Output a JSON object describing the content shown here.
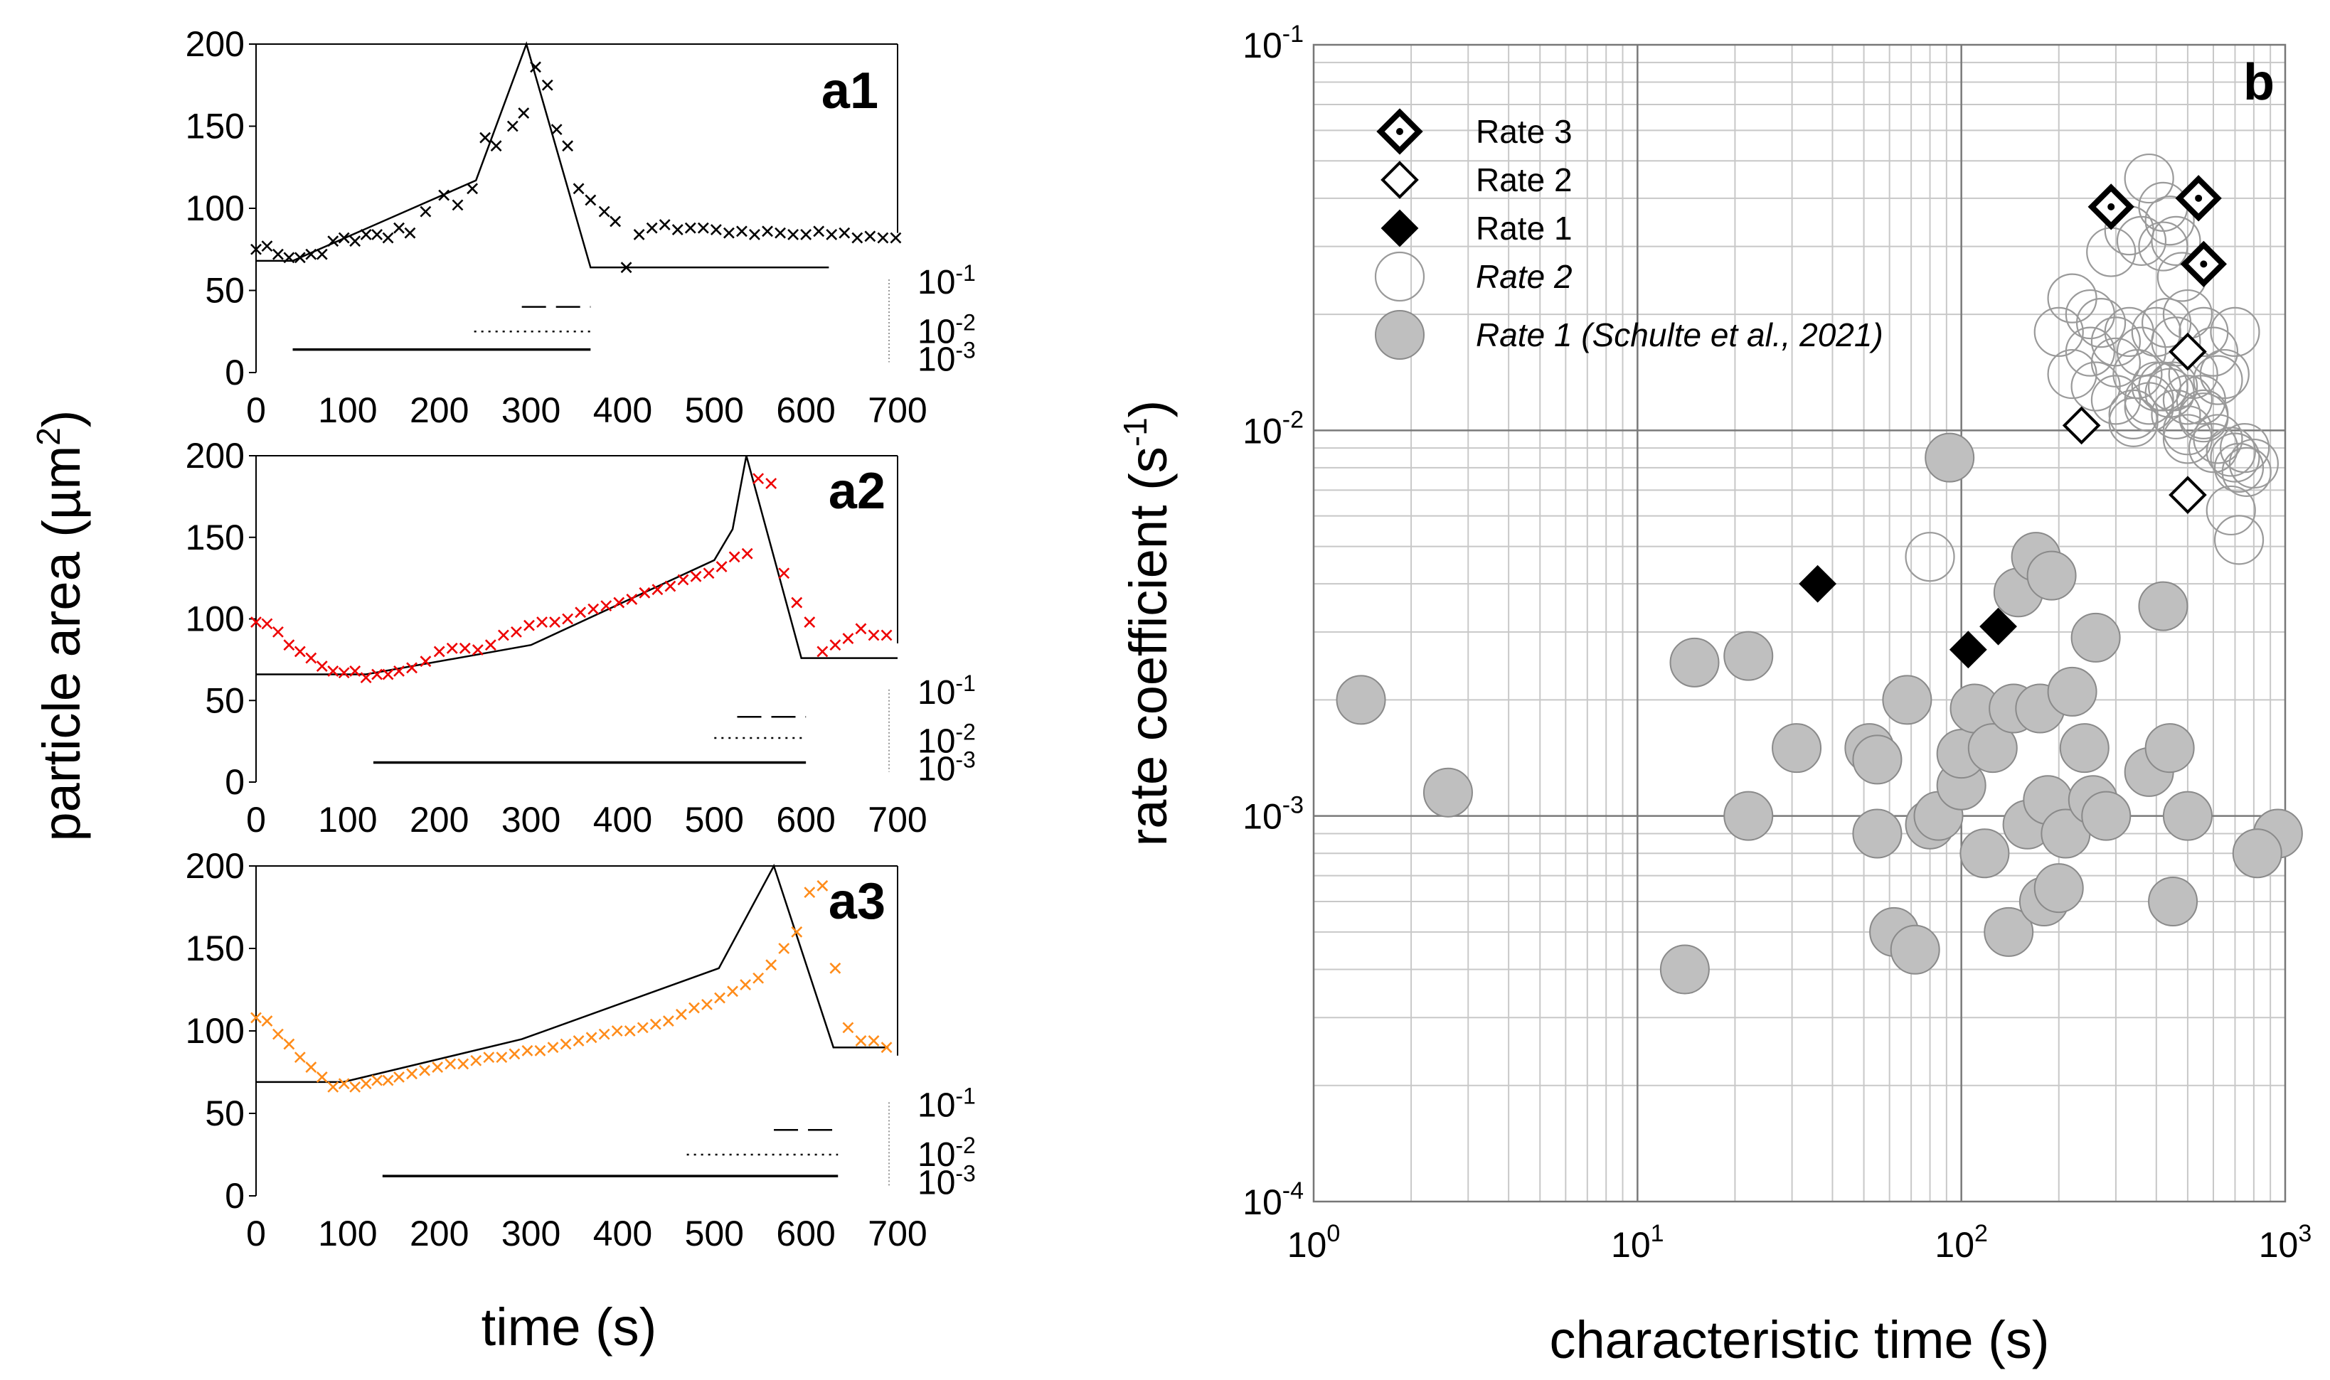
{
  "figure": {
    "shared_ylabel": "particle area (µm",
    "shared_ylabel_sup": "2",
    "shared_ylabel_close": ")",
    "shared_xlabel": "time (s)"
  },
  "chart_data": [
    {
      "id": "a1",
      "type": "line",
      "title": "a1",
      "marker_color": "#000000",
      "xlim": [
        0,
        700
      ],
      "ylim": [
        0,
        200
      ],
      "xticks": [
        "0",
        "100",
        "200",
        "300",
        "400",
        "500",
        "600",
        "700"
      ],
      "yticks": [
        "0",
        "50",
        "100",
        "150",
        "200"
      ],
      "rate_axis_ticks": [
        "10-1",
        "10-2",
        "10-3"
      ],
      "model_line": {
        "x": [
          0,
          40,
          240,
          295,
          365,
          625
        ],
        "y": [
          68,
          68,
          117,
          200,
          64,
          64
        ]
      },
      "measured": {
        "x": [
          0,
          12,
          24,
          36,
          48,
          60,
          72,
          84,
          96,
          108,
          120,
          132,
          144,
          156,
          168,
          185,
          205,
          220,
          236,
          250,
          262,
          280,
          292,
          305,
          318,
          328,
          340,
          352,
          365,
          380,
          392,
          404,
          418,
          432,
          446,
          460,
          474,
          488,
          502,
          516,
          530,
          544,
          558,
          572,
          586,
          600,
          614,
          628,
          642,
          656,
          670,
          684,
          698
        ],
        "y": [
          75,
          77,
          72,
          70,
          70,
          72,
          72,
          80,
          82,
          80,
          84,
          84,
          82,
          88,
          85,
          98,
          108,
          102,
          112,
          143,
          138,
          150,
          158,
          186,
          175,
          148,
          138,
          112,
          105,
          98,
          92,
          64,
          84,
          88,
          90,
          87,
          88,
          88,
          87,
          85,
          86,
          84,
          86,
          85,
          84,
          84,
          86,
          84,
          85,
          82,
          83,
          82,
          82
        ]
      },
      "bars": [
        {
          "style": "dashed",
          "x": [
            290,
            365
          ],
          "y": 40
        },
        {
          "style": "dotted",
          "x": [
            238,
            365
          ],
          "y": 25
        },
        {
          "style": "solid",
          "x": [
            40,
            365
          ],
          "y": 14
        }
      ]
    },
    {
      "id": "a2",
      "type": "line",
      "title": "a2",
      "marker_color": "#ee0000",
      "xlim": [
        0,
        700
      ],
      "ylim": [
        0,
        200
      ],
      "xticks": [
        "0",
        "100",
        "200",
        "300",
        "400",
        "500",
        "600",
        "700"
      ],
      "yticks": [
        "0",
        "50",
        "100",
        "150",
        "200"
      ],
      "rate_axis_ticks": [
        "10-1",
        "10-2",
        "10-3"
      ],
      "model_line": {
        "x": [
          0,
          120,
          300,
          500,
          520,
          535,
          595,
          700
        ],
        "y": [
          66,
          66,
          84,
          136,
          155,
          200,
          76,
          76
        ]
      },
      "measured": {
        "x": [
          0,
          12,
          24,
          36,
          48,
          60,
          72,
          84,
          96,
          108,
          120,
          132,
          144,
          156,
          170,
          185,
          200,
          214,
          228,
          242,
          256,
          270,
          284,
          298,
          312,
          326,
          340,
          354,
          368,
          382,
          396,
          410,
          424,
          438,
          452,
          466,
          480,
          494,
          508,
          522,
          536,
          548,
          562,
          576,
          590,
          604,
          618,
          632,
          646,
          660,
          674,
          688
        ],
        "y": [
          98,
          97,
          92,
          84,
          80,
          76,
          71,
          68,
          67,
          68,
          64,
          66,
          66,
          68,
          70,
          74,
          80,
          82,
          82,
          81,
          84,
          90,
          92,
          96,
          98,
          98,
          100,
          104,
          106,
          108,
          110,
          112,
          116,
          118,
          120,
          124,
          126,
          128,
          132,
          138,
          140,
          186,
          183,
          128,
          110,
          98,
          80,
          84,
          88,
          94,
          90,
          90
        ]
      },
      "bars": [
        {
          "style": "dashed",
          "x": [
            525,
            600
          ],
          "y": 40
        },
        {
          "style": "dotted",
          "x": [
            500,
            600
          ],
          "y": 27
        },
        {
          "style": "solid",
          "x": [
            128,
            600
          ],
          "y": 12
        }
      ]
    },
    {
      "id": "a3",
      "type": "line",
      "title": "a3",
      "marker_color": "#ff8c1a",
      "xlim": [
        0,
        700
      ],
      "ylim": [
        0,
        200
      ],
      "xticks": [
        "0",
        "100",
        "200",
        "300",
        "400",
        "500",
        "600",
        "700"
      ],
      "yticks": [
        "0",
        "50",
        "100",
        "150",
        "200"
      ],
      "rate_axis_ticks": [
        "10-1",
        "10-2",
        "10-3"
      ],
      "model_line": {
        "x": [
          0,
          95,
          290,
          505,
          565,
          630,
          690
        ],
        "y": [
          69,
          69,
          95,
          138,
          200,
          90,
          90
        ]
      },
      "measured": {
        "x": [
          0,
          12,
          24,
          36,
          48,
          60,
          72,
          84,
          96,
          108,
          120,
          132,
          144,
          156,
          170,
          184,
          198,
          212,
          226,
          240,
          254,
          268,
          282,
          296,
          310,
          324,
          338,
          352,
          366,
          380,
          394,
          408,
          422,
          436,
          450,
          464,
          478,
          492,
          506,
          520,
          534,
          548,
          562,
          576,
          590,
          604,
          618,
          632,
          646,
          660,
          674,
          688
        ],
        "y": [
          108,
          106,
          98,
          92,
          84,
          78,
          72,
          66,
          68,
          66,
          68,
          70,
          70,
          72,
          74,
          76,
          78,
          80,
          80,
          82,
          84,
          84,
          86,
          88,
          88,
          90,
          92,
          94,
          96,
          98,
          100,
          100,
          102,
          104,
          106,
          110,
          114,
          116,
          120,
          124,
          128,
          132,
          140,
          150,
          160,
          184,
          188,
          138,
          102,
          94,
          94,
          90
        ]
      },
      "bars": [
        {
          "style": "dashed",
          "x": [
            565,
            635
          ],
          "y": 40
        },
        {
          "style": "dotted",
          "x": [
            470,
            635
          ],
          "y": 25
        },
        {
          "style": "solid",
          "x": [
            138,
            635
          ],
          "y": 12
        }
      ]
    },
    {
      "id": "b",
      "type": "scatter",
      "title": "b",
      "xscale": "log",
      "yscale": "log",
      "xlim": [
        1,
        1000
      ],
      "ylim": [
        0.0001,
        0.1
      ],
      "xlabel": "characteristic time (s)",
      "ylabel": "rate coefficient (s",
      "ylabel_sup": "-1",
      "ylabel_close": ")",
      "xticks": [
        {
          "base": "10",
          "exp": "0"
        },
        {
          "base": "10",
          "exp": "1"
        },
        {
          "base": "10",
          "exp": "2"
        },
        {
          "base": "10",
          "exp": "3"
        }
      ],
      "yticks": [
        {
          "base": "10",
          "exp": "-1"
        },
        {
          "base": "10",
          "exp": "-2"
        },
        {
          "base": "10",
          "exp": "-3"
        },
        {
          "base": "10",
          "exp": "-4"
        }
      ],
      "legend_position": "top-left",
      "series": [
        {
          "name": "Rate 3",
          "italic": false,
          "marker": "dotted-diamond",
          "x": [
            290,
            540,
            560
          ],
          "y": [
            0.038,
            0.04,
            0.027
          ]
        },
        {
          "name": "Rate 2",
          "italic": false,
          "marker": "open-diamond",
          "x": [
            235,
            500,
            500
          ],
          "y": [
            0.0103,
            0.016,
            0.0068
          ]
        },
        {
          "name": "Rate 1",
          "italic": false,
          "marker": "filled-diamond",
          "x": [
            36,
            105,
            130
          ],
          "y": [
            0.004,
            0.0027,
            0.0031
          ]
        },
        {
          "name": "Rate 2",
          "italic": true,
          "marker": "open-circle",
          "x": [
            80,
            290,
            330,
            360,
            380,
            420,
            420,
            440,
            460,
            480,
            200,
            220,
            250,
            270,
            300,
            330,
            360,
            400,
            430,
            460,
            500,
            520,
            560,
            600,
            650,
            700,
            750,
            800,
            220,
            260,
            300,
            340,
            380,
            420,
            460,
            500,
            550,
            600,
            680,
            720,
            250,
            300,
            350,
            400,
            450,
            500,
            560,
            620,
            700,
            760,
            340,
            380,
            440,
            500,
            560,
            620,
            680,
            720
          ],
          "y": [
            0.0047,
            0.029,
            0.033,
            0.031,
            0.045,
            0.038,
            0.03,
            0.035,
            0.031,
            0.025,
            0.018,
            0.022,
            0.02,
            0.019,
            0.017,
            0.018,
            0.016,
            0.018,
            0.019,
            0.017,
            0.02,
            0.014,
            0.018,
            0.016,
            0.014,
            0.018,
            0.009,
            0.0082,
            0.014,
            0.013,
            0.012,
            0.011,
            0.012,
            0.013,
            0.011,
            0.01,
            0.012,
            0.009,
            0.0062,
            0.0052,
            0.016,
            0.015,
            0.014,
            0.013,
            0.013,
            0.012,
            0.011,
            0.0095,
            0.0085,
            0.0078,
            0.0105,
            0.0115,
            0.0125,
            0.0095,
            0.0108,
            0.0135,
            0.0088,
            0.008
          ]
        },
        {
          "name": "Rate 1 (Schulte et al., 2021)",
          "italic": true,
          "marker": "filled-circle",
          "x": [
            1.4,
            2.6,
            14,
            15,
            22,
            22,
            31,
            52,
            55,
            55,
            62,
            68,
            72,
            80,
            85,
            92,
            100,
            100,
            110,
            118,
            125,
            140,
            145,
            150,
            160,
            170,
            175,
            180,
            185,
            190,
            200,
            210,
            220,
            240,
            255,
            260,
            280,
            380,
            420,
            440,
            450,
            500,
            950,
            820
          ],
          "y": [
            0.002,
            0.00115,
            0.0004,
            0.0025,
            0.0026,
            0.001,
            0.0015,
            0.0015,
            0.0014,
            0.0009,
            0.0005,
            0.002,
            0.00045,
            0.00095,
            0.001,
            0.0085,
            0.0012,
            0.00145,
            0.0019,
            0.0008,
            0.0015,
            0.0005,
            0.0019,
            0.0038,
            0.00095,
            0.0047,
            0.0019,
            0.0006,
            0.0011,
            0.0042,
            0.00065,
            0.0009,
            0.0021,
            0.0015,
            0.0011,
            0.0029,
            0.001,
            0.0013,
            0.0035,
            0.0015,
            0.0006,
            0.001,
            0.0009,
            0.0008
          ]
        }
      ]
    }
  ]
}
